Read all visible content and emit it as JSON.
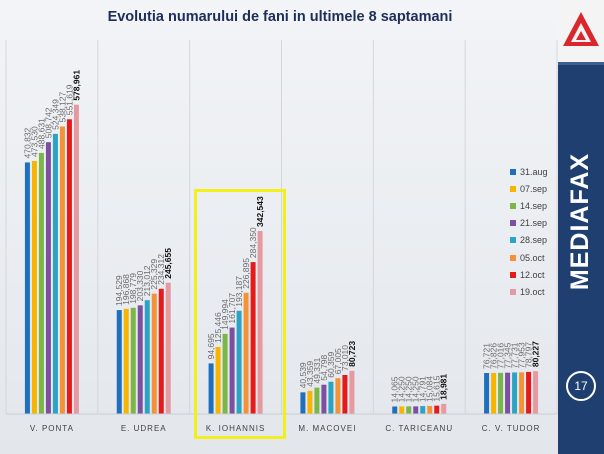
{
  "title": "Evolutia numarului de fani in ultimele 8 saptamani",
  "brand": "MEDIAFAX",
  "page_number": "17",
  "chart_data": {
    "type": "bar",
    "title": "Evolutia numarului de fani in ultimele 8 saptamani",
    "xlabel": "",
    "ylabel": "",
    "categories": [
      "V. PONTA",
      "E. UDREA",
      "K. IOHANNIS",
      "M. MACOVEI",
      "C. TARICEANU",
      "C. V. TUDOR"
    ],
    "series": [
      {
        "name": "31.aug",
        "color": "#1f6fbf",
        "values": [
          470832,
          194529,
          94695,
          40539,
          14065,
          76721
        ],
        "labels": [
          "470,832",
          "194,529",
          "94,695",
          "40,539",
          "14,065",
          "76,721"
        ]
      },
      {
        "name": "07.sep",
        "color": "#f7b500",
        "values": [
          473530,
          196868,
          125446,
          43359,
          14250,
          76826
        ],
        "labels": [
          "473,530",
          "196,868",
          "125,446",
          "43,359",
          "14,250",
          "76,826"
        ]
      },
      {
        "name": "14.sep",
        "color": "#7ab648",
        "values": [
          488631,
          198779,
          149994,
          49331,
          14250,
          77016
        ],
        "labels": [
          "488,631",
          "198,779",
          "149,994",
          "49,331",
          "14,250",
          "77,016"
        ]
      },
      {
        "name": "21.sep",
        "color": "#7b4fa2",
        "values": [
          508742,
          203330,
          161707,
          54798,
          14250,
          77345
        ],
        "labels": [
          "508,742",
          "203,330",
          "161,707",
          "54,798",
          "14,250",
          "77,345"
        ]
      },
      {
        "name": "28.sep",
        "color": "#2aa3c4",
        "values": [
          524349,
          213012,
          193187,
          60359,
          14791,
          77731
        ],
        "labels": [
          "524,349",
          "213,012",
          "193,187",
          "60,359",
          "14,791",
          "77,731"
        ]
      },
      {
        "name": "05.oct",
        "color": "#f39237",
        "values": [
          538127,
          225329,
          226895,
          67005,
          15084,
          77953
        ],
        "labels": [
          "538,127",
          "225,329",
          "226,895",
          "67,005",
          "15,084",
          "77,953"
        ]
      },
      {
        "name": "12.oct",
        "color": "#e41b1b",
        "values": [
          551619,
          234312,
          284350,
          73010,
          15615,
          78797
        ],
        "labels": [
          "551,619",
          "234,312",
          "284,350",
          "73,010",
          "15,615",
          "78,797"
        ]
      },
      {
        "name": "19.oct",
        "color": "#e49aa0",
        "values": [
          578961,
          245655,
          342543,
          80723,
          18981,
          80227
        ],
        "labels": [
          "578,961",
          "245,655",
          "342,543",
          "80,723",
          "18,981",
          "80,227"
        ]
      }
    ],
    "ylim": [
      0,
      700000
    ],
    "grid": false,
    "legend": "right",
    "highlight_category": "K. IOHANNIS",
    "highlight_color": "#f1ef1c"
  }
}
